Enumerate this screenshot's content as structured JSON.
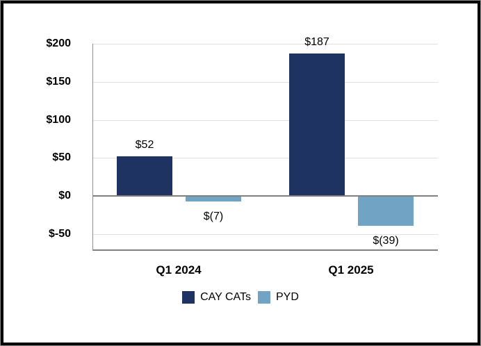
{
  "chart_data": {
    "type": "bar",
    "title": "",
    "xlabel": "",
    "ylabel": "",
    "categories": [
      "Q1 2024",
      "Q1 2025"
    ],
    "series": [
      {
        "name": "CAY CATs",
        "color": "#1F3363",
        "values": [
          52,
          187
        ],
        "data_labels": [
          "$52",
          "$187"
        ]
      },
      {
        "name": "PYD",
        "color": "#71A3C5",
        "values": [
          -7,
          -39
        ],
        "data_labels": [
          "$(7)",
          "$(39)"
        ]
      }
    ],
    "y_axis": {
      "min": -71,
      "max": 200,
      "major_unit": 50,
      "grid": true,
      "ticks": [
        {
          "value": 200,
          "label": "$200"
        },
        {
          "value": 150,
          "label": "$150"
        },
        {
          "value": 100,
          "label": "$100"
        },
        {
          "value": 50,
          "label": "$50"
        },
        {
          "value": 0,
          "label": "$0"
        },
        {
          "value": -50,
          "label": "$-50"
        }
      ]
    },
    "legend": {
      "position": "bottom",
      "entries": [
        "CAY CATs",
        "PYD"
      ]
    }
  },
  "colors": {
    "series_cay_cats": "#1F3363",
    "series_pyd": "#71A3C5",
    "gridline": "#E0E0E0",
    "zero_line": "#808080",
    "axis_line": "#909090",
    "plot_bottom_border": "#808080",
    "outer_border": "#000000",
    "background": "#FFFFFF",
    "text": "#000000"
  }
}
